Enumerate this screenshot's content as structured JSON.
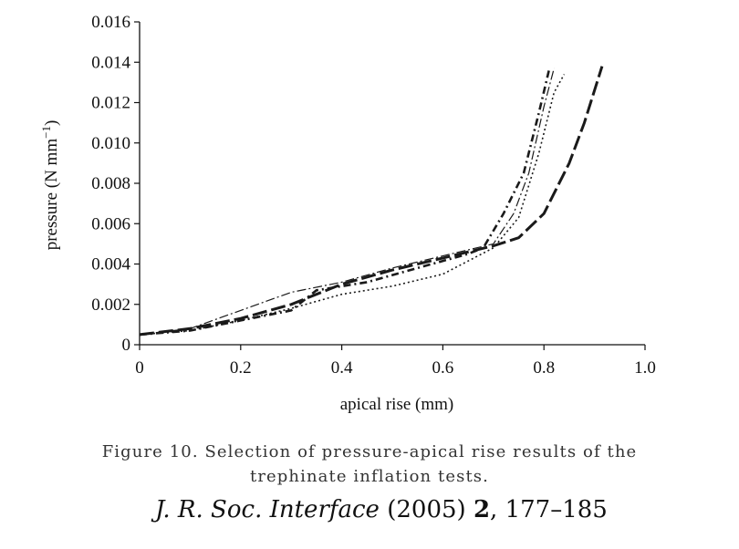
{
  "chart_data": {
    "type": "line",
    "xlabel": "apical rise (mm)",
    "ylabel_main": "pressure (N mm",
    "ylabel_sup": "−1",
    "ylabel_close": ")",
    "xlim": [
      0,
      1.0
    ],
    "ylim": [
      0,
      0.016
    ],
    "xticks": [
      "0",
      "0.2",
      "0.4",
      "0.6",
      "0.8",
      "1.0"
    ],
    "yticks": [
      "0",
      "0.002",
      "0.004",
      "0.006",
      "0.008",
      "0.010",
      "0.012",
      "0.014",
      "0.016"
    ],
    "grid": false,
    "legend": "none",
    "series": [
      {
        "style": "long-dash",
        "x": [
          0.0,
          0.1,
          0.2,
          0.3,
          0.4,
          0.5,
          0.6,
          0.7,
          0.75,
          0.8,
          0.85,
          0.88,
          0.915
        ],
        "y": [
          0.0005,
          0.0008,
          0.0013,
          0.002,
          0.003,
          0.0037,
          0.0043,
          0.0049,
          0.0053,
          0.0065,
          0.009,
          0.011,
          0.0138
        ]
      },
      {
        "style": "dash-dot",
        "x": [
          0.0,
          0.1,
          0.2,
          0.3,
          0.35,
          0.45,
          0.55,
          0.65,
          0.68,
          0.72,
          0.76,
          0.79,
          0.81
        ],
        "y": [
          0.0005,
          0.0007,
          0.0012,
          0.0017,
          0.0027,
          0.0031,
          0.0038,
          0.0045,
          0.0048,
          0.0065,
          0.0085,
          0.0115,
          0.0136
        ]
      },
      {
        "style": "dotted",
        "x": [
          0.0,
          0.1,
          0.2,
          0.3,
          0.4,
          0.5,
          0.6,
          0.7,
          0.75,
          0.79,
          0.82,
          0.84
        ],
        "y": [
          0.0005,
          0.0007,
          0.0012,
          0.0018,
          0.0025,
          0.0029,
          0.0035,
          0.0048,
          0.0063,
          0.0095,
          0.0125,
          0.0134
        ]
      },
      {
        "style": "dash-dot-thin",
        "x": [
          0.0,
          0.1,
          0.2,
          0.3,
          0.4,
          0.5,
          0.6,
          0.7,
          0.74,
          0.77,
          0.8,
          0.82
        ],
        "y": [
          0.0005,
          0.0008,
          0.0017,
          0.0026,
          0.0031,
          0.0038,
          0.0044,
          0.005,
          0.0065,
          0.0085,
          0.0118,
          0.0137
        ]
      }
    ]
  },
  "caption": {
    "line1": "Figure 10. Selection of pressure-apical rise results of the",
    "line2": "trephinate inflation tests."
  },
  "footer": {
    "journal": "J. R. Soc. Interface",
    "year": "(2005)",
    "volume": "2",
    "pages": ", 177–185"
  }
}
